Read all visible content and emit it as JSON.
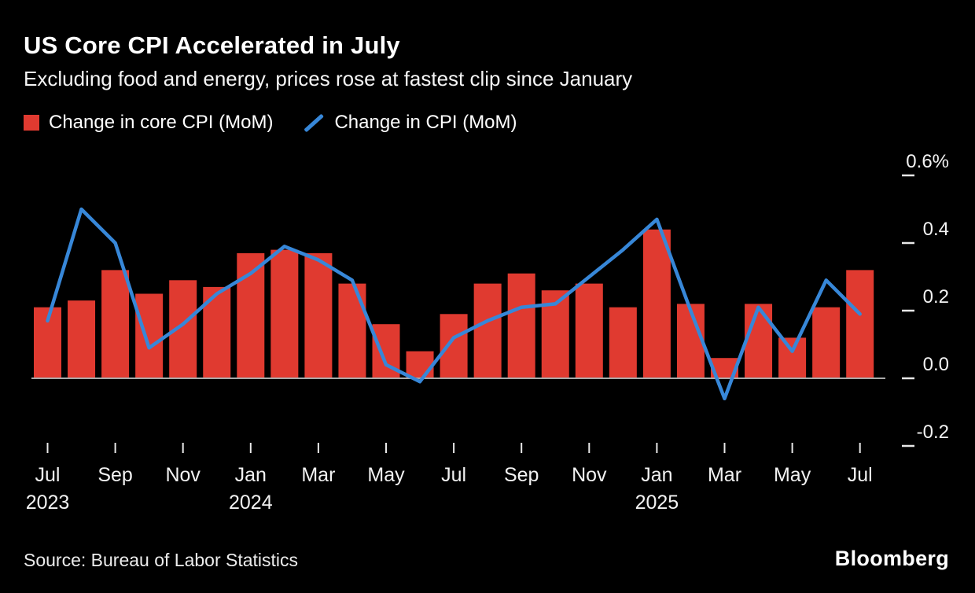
{
  "header": {
    "title": "US Core CPI Accelerated in July",
    "subtitle": "Excluding food and energy, prices rose at fastest clip since January"
  },
  "footer": {
    "source": "Source: Bureau of Labor Statistics",
    "brand": "Bloomberg"
  },
  "chart_data": {
    "type": "bar+line",
    "title": "US Core CPI Accelerated in July",
    "subtitle": "Excluding food and energy, prices rose at fastest clip since January",
    "unit": "%",
    "grid": "zero-line-only",
    "legend_position": "top-left",
    "background": "#000000",
    "ylim": [
      -0.3,
      0.68
    ],
    "categories": [
      "Jul 2023",
      "Aug 2023",
      "Sep 2023",
      "Oct 2023",
      "Nov 2023",
      "Dec 2023",
      "Jan 2024",
      "Feb 2024",
      "Mar 2024",
      "Apr 2024",
      "May 2024",
      "Jun 2024",
      "Jul 2024",
      "Aug 2024",
      "Sep 2024",
      "Oct 2024",
      "Nov 2024",
      "Dec 2024",
      "Jan 2025",
      "Feb 2025",
      "Mar 2025",
      "Apr 2025",
      "May 2025",
      "Jun 2025",
      "Jul 2025"
    ],
    "series": [
      {
        "name": "Change in core CPI (MoM)",
        "type": "bar",
        "color": "#e03a30",
        "values": [
          0.21,
          0.23,
          0.32,
          0.25,
          0.29,
          0.27,
          0.37,
          0.38,
          0.37,
          0.28,
          0.16,
          0.08,
          0.19,
          0.28,
          0.31,
          0.26,
          0.28,
          0.21,
          0.44,
          0.22,
          0.06,
          0.22,
          0.12,
          0.21,
          0.32
        ]
      },
      {
        "name": "Change in CPI (MoM)",
        "type": "line",
        "color": "#3787d8",
        "values": [
          0.17,
          0.5,
          0.4,
          0.09,
          0.16,
          0.25,
          0.31,
          0.39,
          0.35,
          0.29,
          0.04,
          -0.01,
          0.12,
          0.17,
          0.21,
          0.22,
          0.3,
          0.38,
          0.47,
          0.2,
          -0.06,
          0.21,
          0.08,
          0.29,
          0.19
        ]
      }
    ],
    "y_ticks": [
      {
        "value": 0.6,
        "label": "0.6%"
      },
      {
        "value": 0.4,
        "label": "0.4"
      },
      {
        "value": 0.2,
        "label": "0.2"
      },
      {
        "value": 0.0,
        "label": "0.0"
      },
      {
        "value": -0.2,
        "label": "-0.2"
      }
    ],
    "x_ticks": [
      {
        "index": 0,
        "label": "Jul",
        "year": "2023"
      },
      {
        "index": 2,
        "label": "Sep"
      },
      {
        "index": 4,
        "label": "Nov"
      },
      {
        "index": 6,
        "label": "Jan",
        "year": "2024"
      },
      {
        "index": 8,
        "label": "Mar"
      },
      {
        "index": 10,
        "label": "May"
      },
      {
        "index": 12,
        "label": "Jul"
      },
      {
        "index": 14,
        "label": "Sep"
      },
      {
        "index": 16,
        "label": "Nov"
      },
      {
        "index": 18,
        "label": "Jan",
        "year": "2025"
      },
      {
        "index": 20,
        "label": "Mar"
      },
      {
        "index": 22,
        "label": "May"
      },
      {
        "index": 24,
        "label": "Jul"
      }
    ]
  }
}
